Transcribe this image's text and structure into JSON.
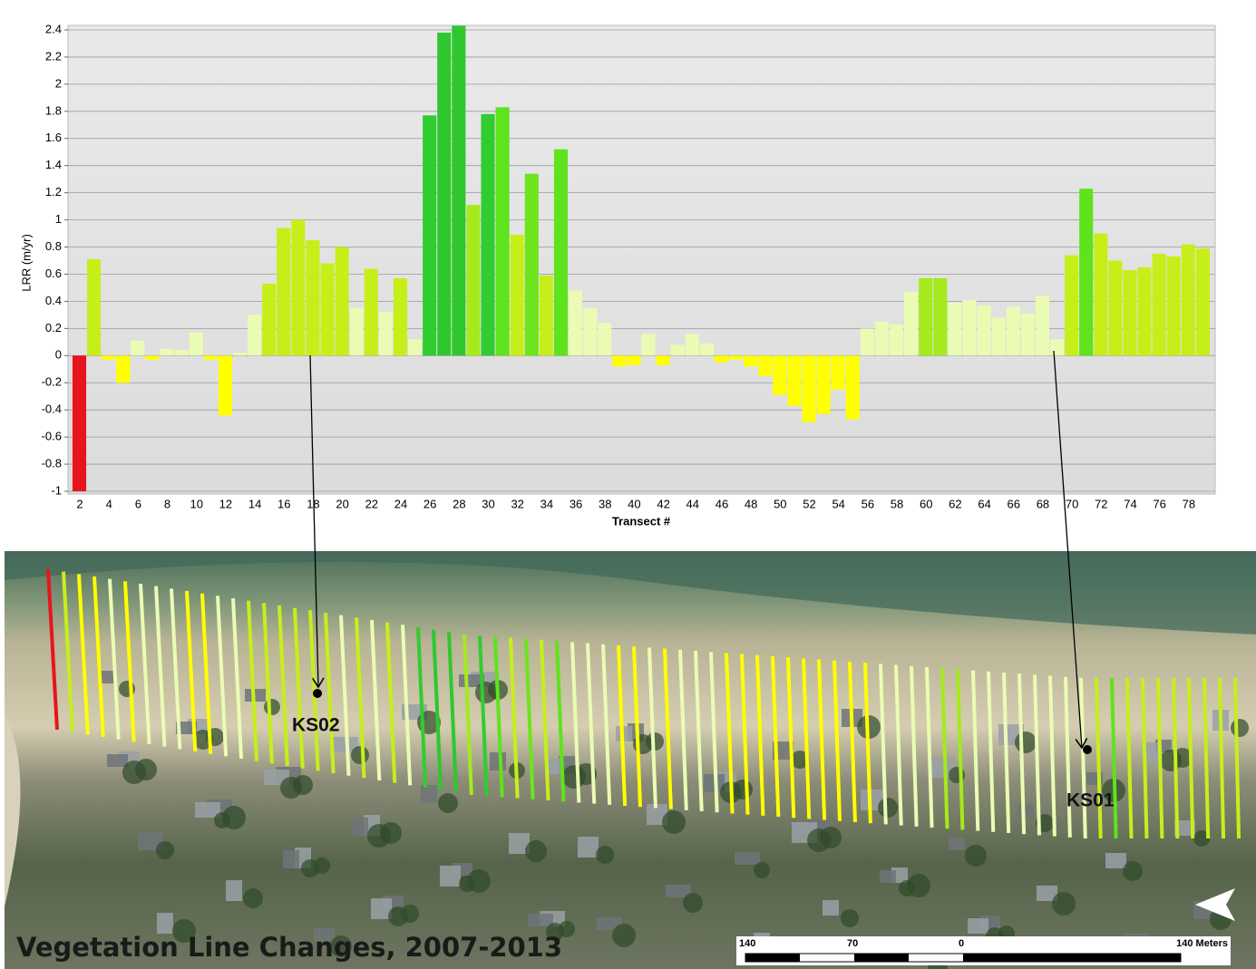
{
  "chart_data": {
    "type": "bar",
    "ylabel": "LRR (m/yr)",
    "xlabel": "Transect #",
    "categories": [
      "2",
      null,
      "4",
      null,
      "6",
      null,
      "8",
      null,
      "10",
      null,
      "12",
      null,
      "14",
      null,
      "16",
      null,
      "18",
      null,
      "20",
      null,
      "22",
      null,
      "24",
      null,
      "26",
      null,
      "28",
      null,
      "30",
      null,
      "32",
      null,
      "34",
      null,
      "36",
      null,
      "38",
      null,
      "40",
      null,
      "42",
      null,
      "44",
      null,
      "46",
      null,
      "48",
      null,
      "50",
      null,
      "52",
      null,
      "54",
      null,
      "56",
      null,
      "58",
      null,
      "60",
      null,
      "62",
      null,
      "64",
      null,
      "66",
      null,
      "68",
      null,
      "70",
      null,
      "72",
      null,
      "74",
      null,
      "76",
      null,
      "78",
      null
    ],
    "values": [
      -1,
      0.71,
      -0.03,
      -0.2,
      0.11,
      -0.03,
      0.05,
      0.04,
      0.17,
      -0.03,
      -0.44,
      0.02,
      0.3,
      0.53,
      0.94,
      1.0,
      0.85,
      0.68,
      0.8,
      0.35,
      0.64,
      0.32,
      0.57,
      0.12,
      1.77,
      2.38,
      2.43,
      1.11,
      1.78,
      1.83,
      0.89,
      1.34,
      0.59,
      1.52,
      0.48,
      0.35,
      0.24,
      -0.08,
      -0.07,
      0.16,
      -0.07,
      0.08,
      0.16,
      0.09,
      -0.05,
      -0.03,
      -0.08,
      -0.15,
      -0.29,
      -0.37,
      -0.49,
      -0.43,
      -0.25,
      -0.47,
      0.2,
      0.25,
      0.23,
      0.47,
      0.57,
      0.57,
      0.39,
      0.41,
      0.37,
      0.28,
      0.36,
      0.31,
      0.44,
      0.12,
      0.74,
      1.23,
      0.9,
      0.7,
      0.63,
      0.65,
      0.75,
      0.73,
      0.82,
      0.79
    ],
    "colors": [
      "#e8141c",
      "#c6ef1a",
      "#ffff00",
      "#ffff00",
      "#eafcb4",
      "#ffff00",
      "#eafcb4",
      "#eafcb4",
      "#eafcb4",
      "#ffff00",
      "#ffff00",
      "#eafcb4",
      "#eafcb4",
      "#c6ef1a",
      "#c6ef1a",
      "#c6ef1a",
      "#c6ef1a",
      "#c6ef1a",
      "#c6ef1a",
      "#eafcb4",
      "#c6ef1a",
      "#eafcb4",
      "#c6ef1a",
      "#eafcb4",
      "#30cc30",
      "#2ec82e",
      "#2ec82e",
      "#a4ea1c",
      "#30cc30",
      "#5ee31c",
      "#c6ef1a",
      "#6ee41c",
      "#c6ef1a",
      "#5ee31c",
      "#eafcb4",
      "#eafcb4",
      "#eafcb4",
      "#ffff00",
      "#ffff00",
      "#eafcb4",
      "#ffff00",
      "#eafcb4",
      "#eafcb4",
      "#eafcb4",
      "#ffff00",
      "#ffff00",
      "#ffff00",
      "#ffff00",
      "#ffff00",
      "#ffff00",
      "#ffff00",
      "#ffff00",
      "#ffff00",
      "#ffff00",
      "#eafcb4",
      "#eafcb4",
      "#eafcb4",
      "#eafcb4",
      "#a4ea1c",
      "#a4ea1c",
      "#eafcb4",
      "#eafcb4",
      "#eafcb4",
      "#eafcb4",
      "#eafcb4",
      "#eafcb4",
      "#eafcb4",
      "#eafcb4",
      "#c6ef1a",
      "#5ee31c",
      "#c6ef1a",
      "#c6ef1a",
      "#c6ef1a",
      "#c6ef1a",
      "#c6ef1a",
      "#c6ef1a",
      "#c6ef1a",
      "#c6ef1a"
    ],
    "ylim": [
      -1,
      2.4
    ],
    "yticks": [
      -1,
      -0.8,
      -0.6,
      -0.4,
      -0.2,
      0,
      0.2,
      0.4,
      0.6,
      0.8,
      1,
      1.2,
      1.4,
      1.6,
      1.8,
      2,
      2.2,
      2.4
    ],
    "grid": true
  },
  "map": {
    "title": "Vegetation Line Changes, 2007-2013",
    "sites": [
      "KS02",
      "KS01"
    ],
    "scale": [
      "140",
      "70",
      "0",
      "140 Meters"
    ]
  }
}
